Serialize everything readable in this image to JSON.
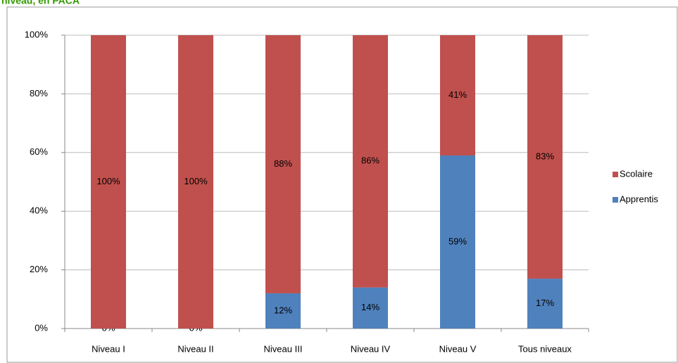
{
  "chart_data": {
    "type": "stacked_bar",
    "title": "niveau, en PACA",
    "categories": [
      "Niveau I",
      "Niveau II",
      "Niveau III",
      "Niveau IV",
      "Niveau V",
      "Tous niveaux"
    ],
    "series": [
      {
        "name": "Apprentis",
        "color": "#4f81bd",
        "values": [
          0,
          0,
          12,
          14,
          59,
          17
        ],
        "value_labels": [
          "0%",
          "0%",
          "12%",
          "14%",
          "59%",
          "17%"
        ]
      },
      {
        "name": "Scolaire",
        "color": "#c0504d",
        "values": [
          100,
          100,
          88,
          86,
          41,
          83
        ],
        "value_labels": [
          "100%",
          "100%",
          "88%",
          "86%",
          "41%",
          "83%"
        ]
      }
    ],
    "ylim": [
      0,
      100
    ],
    "yticks": [
      {
        "value": 0,
        "label": "0%"
      },
      {
        "value": 20,
        "label": "20%"
      },
      {
        "value": 40,
        "label": "40%"
      },
      {
        "value": 60,
        "label": "60%"
      },
      {
        "value": 80,
        "label": "80%"
      },
      {
        "value": 100,
        "label": "100%"
      }
    ],
    "grid": true,
    "legend": "right"
  }
}
